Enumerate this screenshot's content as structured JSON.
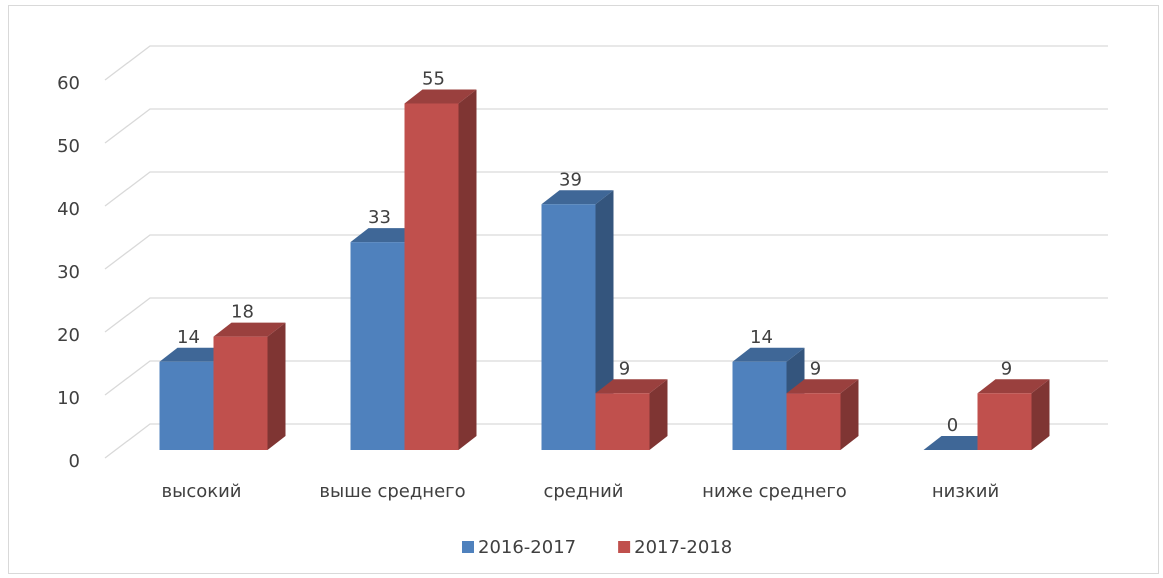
{
  "chart_data": {
    "type": "bar3d",
    "categories": [
      "высокий",
      "выше среднего",
      "средний",
      "ниже среднего",
      "низкий"
    ],
    "series": [
      {
        "name": "2016-2017",
        "color": "#4f81bd",
        "values": [
          14,
          33,
          39,
          14,
          0
        ]
      },
      {
        "name": "2017-2018",
        "color": "#c0504d",
        "values": [
          18,
          55,
          9,
          9,
          9
        ]
      }
    ],
    "ylim": [
      0,
      60
    ],
    "yticks": [
      0,
      10,
      20,
      30,
      40,
      50,
      60
    ],
    "grid": true,
    "legend": "bottom"
  }
}
